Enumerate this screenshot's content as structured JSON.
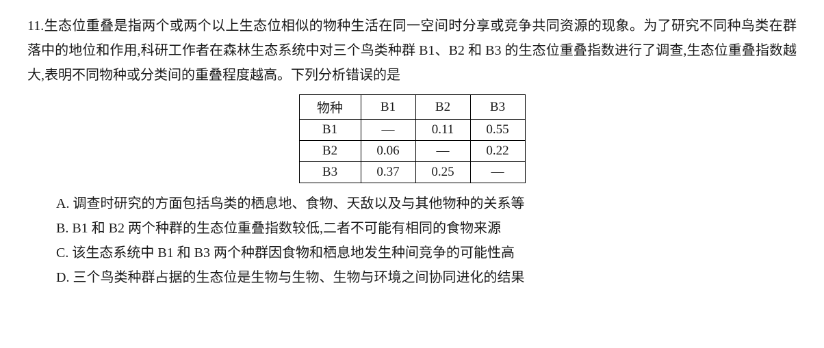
{
  "question": {
    "number": "11.",
    "stem": "生态位重叠是指两个或两个以上生态位相似的物种生活在同一空间时分享或竞争共同资源的现象。为了研究不同种鸟类在群落中的地位和作用,科研工作者在森林生态系统中对三个鸟类种群 B1、B2 和 B3 的生态位重叠指数进行了调查,生态位重叠指数越大,表明不同物种或分类间的重叠程度越高。下列分析错误的是"
  },
  "table": {
    "header": {
      "c0": "物种",
      "c1": "B1",
      "c2": "B2",
      "c3": "B3"
    },
    "rows": {
      "r1": {
        "c0": "B1",
        "c1": "—",
        "c2": "0.11",
        "c3": "0.55"
      },
      "r2": {
        "c0": "B2",
        "c1": "0.06",
        "c2": "—",
        "c3": "0.22"
      },
      "r3": {
        "c0": "B3",
        "c1": "0.37",
        "c2": "0.25",
        "c3": "—"
      }
    }
  },
  "options": {
    "A": "A. 调查时研究的方面包括鸟类的栖息地、食物、天敌以及与其他物种的关系等",
    "B": "B. B1 和 B2 两个种群的生态位重叠指数较低,二者不可能有相同的食物来源",
    "C": "C. 该生态系统中 B1 和 B3 两个种群因食物和栖息地发生种间竞争的可能性高",
    "D": "D. 三个鸟类种群占据的生态位是生物与生物、生物与环境之间协同进化的结果"
  },
  "styles": {
    "text_color": "#1a1a1a",
    "background_color": "#ffffff",
    "border_color": "#000000",
    "font_size_body": 20,
    "font_size_table": 19,
    "line_height": 1.8
  }
}
